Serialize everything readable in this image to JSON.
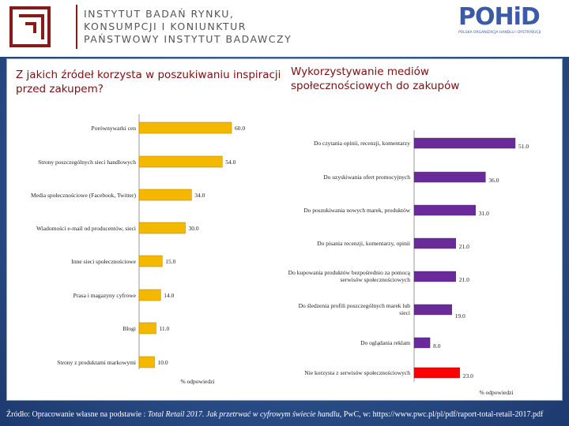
{
  "header": {
    "institute_lines": [
      "INSTYTUT BADAŃ RYNKU,",
      "KONSUMPCJI I KONIUNKTUR",
      "PAŃSTWOWY INSTYTUT BADAWCZY"
    ],
    "pohid_logo": "POHiD",
    "pohid_sub": "POLSKA ORGANIZACJA HANDLU I DYSTRYBUCJI",
    "brand_color": "#8a1a1a",
    "pohid_color": "#3b5aa8"
  },
  "source": {
    "prefix": "Źródło: Opracowanie własne na podstawie : ",
    "title": "Total Retail 2017. Jak przetrwać w cyfrowym świecie handlu",
    "suffix": ", PwC, w: https://www.pwc.pl/pl/pdf/raport-total-retail-2017.pdf"
  },
  "chart_data": [
    {
      "type": "bar",
      "orientation": "horizontal",
      "title": "Z jakich źródeł korzysta w poszukiwaniu inspiracji przed zakupem?",
      "xlabel": "% odpowiedzi",
      "ylabel": "",
      "bar_color": "#f5b800",
      "categories": [
        "Porównywarki cen",
        "Strony poszczególnych sieci handlowych",
        "Media społecznościowe (Facebook, Twitter)",
        "Wiadomości e-mail od producentów, sieci",
        "Inne sieci społecznościowe",
        "Prasa i magazyny cyfrowe",
        "Blogi",
        "Strony z produktami markowymi"
      ],
      "values": [
        60.0,
        54.0,
        34.0,
        30.0,
        15.0,
        14.0,
        11.0,
        10.0
      ],
      "value_labels": [
        "60.0",
        "54.0",
        "34.0",
        "30.0",
        "15.0",
        "14.0",
        "11.0",
        "10.0"
      ]
    },
    {
      "type": "bar",
      "orientation": "horizontal",
      "title": "Wykorzystywanie mediów społecznościowych do zakupów",
      "xlabel": "% odpowiedzi",
      "ylabel": "",
      "bar_color": "#6a2a9a",
      "highlight_color": "#ff0000",
      "categories": [
        "Do czytania opinii, recenzji, komentarzy",
        "Do uzyskiwania ofert promocyjnych",
        "Do poszukiwania nowych marek, produktów",
        "Do pisania recenzji, komentarzy, opinii",
        "Do kupowania produktów bezpośrednio za pomocą serwisów społecznościowych",
        "Do śledzenia profili poszczególnych marek lub sieci",
        "Do oglądania reklam",
        "Nie korzysta z serwisów społecznościowych"
      ],
      "values": [
        51.0,
        36.0,
        31.0,
        21.0,
        21.0,
        19.0,
        8.0,
        23.0
      ],
      "value_labels": [
        "51.0",
        "36.0",
        "31.0",
        "21.0",
        "21.0",
        "19.0",
        "8.0",
        "23.0"
      ],
      "highlight_index": 7
    }
  ]
}
